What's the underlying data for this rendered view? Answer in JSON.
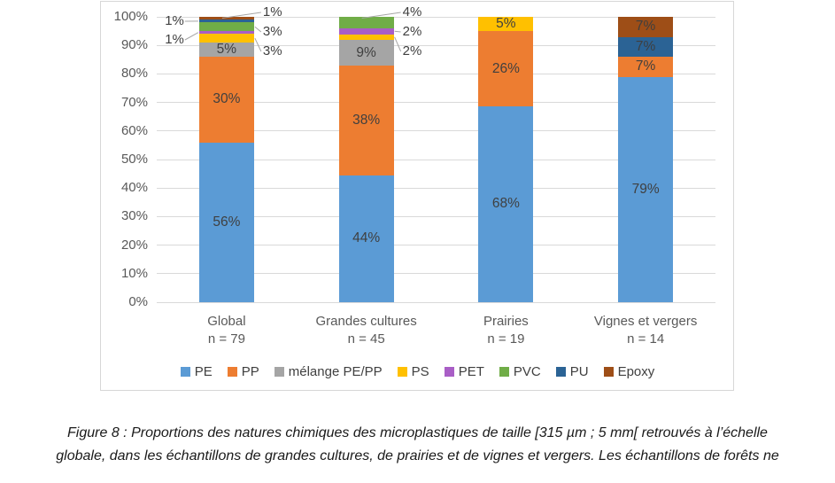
{
  "chart_data": {
    "type": "bar",
    "subtype": "stacked-100-percent",
    "title": "",
    "xlabel": "",
    "ylabel": "",
    "ylim": [
      0,
      100
    ],
    "grid": true,
    "legend_position": "bottom",
    "categories": [
      "Global",
      "Grandes cultures",
      "Prairies",
      "Vignes et vergers"
    ],
    "category_sublabels": [
      "n = 79",
      "n = 45",
      "n = 19",
      "n = 14"
    ],
    "y_ticks": [
      "0%",
      "10%",
      "20%",
      "30%",
      "40%",
      "50%",
      "60%",
      "70%",
      "80%",
      "90%",
      "100%"
    ],
    "series": [
      {
        "name": "PE",
        "color": "#5B9BD5",
        "values": [
          56,
          44,
          68,
          79
        ]
      },
      {
        "name": "PP",
        "color": "#ED7D31",
        "values": [
          30,
          38,
          26,
          7
        ]
      },
      {
        "name": "mélange PE/PP",
        "color": "#A5A5A5",
        "values": [
          5,
          9,
          0,
          0
        ]
      },
      {
        "name": "PS",
        "color": "#FFC000",
        "values": [
          3,
          2,
          5,
          0
        ]
      },
      {
        "name": "PET",
        "color": "#A95EC6",
        "values": [
          1,
          2,
          0,
          0
        ]
      },
      {
        "name": "PVC",
        "color": "#70AD47",
        "values": [
          3,
          4,
          0,
          0
        ]
      },
      {
        "name": "PU",
        "color": "#2B6395",
        "values": [
          1,
          0,
          0,
          7
        ]
      },
      {
        "name": "Epoxy",
        "color": "#9E4E17",
        "values": [
          1,
          0,
          0,
          7
        ]
      }
    ],
    "label_placement": [
      [
        "inside",
        "inside",
        "inside",
        "inside"
      ],
      [
        "inside",
        "inside",
        "inside",
        "inside"
      ],
      [
        "inside",
        "inside",
        null,
        null
      ],
      [
        "right",
        "right",
        "inside",
        null
      ],
      [
        "left",
        "right",
        null,
        null
      ],
      [
        "right",
        "right",
        null,
        null
      ],
      [
        "left",
        null,
        null,
        "inside"
      ],
      [
        "right",
        null,
        null,
        "inside"
      ]
    ],
    "colors": {
      "gridline": "#D9D9D9",
      "axis_text": "#595959",
      "data_label_text": "#3F3F3F",
      "leader_line": "#A6A6A6"
    }
  },
  "caption": {
    "line1": "Figure 8 : Proportions des natures chimiques des microplastiques de taille [315 µm ; 5 mm[ retrouvés à l’échelle",
    "line2": "globale, dans les échantillons de grandes cultures, de prairies et de vignes et vergers. Les échantillons de forêts ne"
  }
}
